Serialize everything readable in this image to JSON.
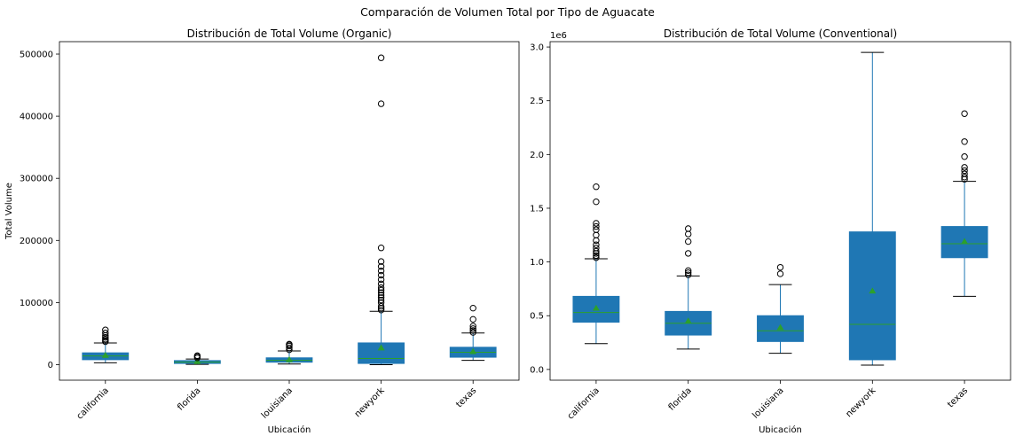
{
  "figure": {
    "suptitle": "Comparación de Volumen Total por Tipo de Aguacate"
  },
  "chart_data": [
    {
      "type": "box",
      "title": "Distribución de Total Volume (Organic)",
      "xlabel": "Ubicación",
      "ylabel": "Total Volume",
      "ylim": [
        -25000,
        520000
      ],
      "yticks": [
        0,
        100000,
        200000,
        300000,
        400000,
        500000
      ],
      "ytick_labels": [
        "0",
        "100000",
        "200000",
        "300000",
        "400000",
        "500000"
      ],
      "offset_label": "",
      "categories": [
        "california",
        "florida",
        "louisiana",
        "newyork",
        "texas"
      ],
      "box_color": "#1f77b4",
      "median_color": "#2ca02c",
      "mean_marker_color": "#2ca02c",
      "boxes": [
        {
          "q1": 8000,
          "median": 14000,
          "q3": 19000,
          "whislo": 3000,
          "whishi": 35000,
          "mean": 15000,
          "fliers": [
            37000,
            39000,
            41000,
            44000,
            47000,
            51000,
            56000
          ]
        },
        {
          "q1": 2000,
          "median": 4000,
          "q3": 6500,
          "whislo": 500,
          "whishi": 9000,
          "mean": 5000,
          "fliers": [
            11000,
            13000,
            14500
          ]
        },
        {
          "q1": 4000,
          "median": 7000,
          "q3": 11000,
          "whislo": 1000,
          "whishi": 22000,
          "mean": 8000,
          "fliers": [
            24000,
            27000,
            30000,
            32000,
            33000
          ]
        },
        {
          "q1": 2000,
          "median": 10000,
          "q3": 35000,
          "whislo": 0,
          "whishi": 86000,
          "mean": 27000,
          "fliers": [
            88000,
            91000,
            94000,
            100000,
            104000,
            108000,
            112000,
            116000,
            120000,
            124000,
            130000,
            137000,
            144000,
            151000,
            158000,
            166000,
            188000,
            420000,
            494000
          ]
        },
        {
          "q1": 12000,
          "median": 20000,
          "q3": 28000,
          "whislo": 7000,
          "whishi": 51000,
          "mean": 21000,
          "fliers": [
            52000,
            55000,
            58000,
            62000,
            73000,
            91000
          ]
        }
      ]
    },
    {
      "type": "box",
      "title": "Distribución de Total Volume (Conventional)",
      "xlabel": "Ubicación",
      "ylabel": "",
      "ylim": [
        -0.1,
        3.05
      ],
      "yticks": [
        0.0,
        0.5,
        1.0,
        1.5,
        2.0,
        2.5,
        3.0
      ],
      "ytick_labels": [
        "0.0",
        "0.5",
        "1.0",
        "1.5",
        "2.0",
        "2.5",
        "3.0"
      ],
      "offset_label": "1e6",
      "categories": [
        "california",
        "florida",
        "louisiana",
        "newyork",
        "texas"
      ],
      "box_color": "#1f77b4",
      "median_color": "#2ca02c",
      "mean_marker_color": "#2ca02c",
      "boxes": [
        {
          "q1": 0.44,
          "median": 0.53,
          "q3": 0.68,
          "whislo": 0.24,
          "whishi": 1.03,
          "mean": 0.57,
          "fliers": [
            1.04,
            1.06,
            1.08,
            1.1,
            1.13,
            1.16,
            1.2,
            1.25,
            1.3,
            1.33,
            1.36,
            1.56,
            1.7
          ]
        },
        {
          "q1": 0.32,
          "median": 0.43,
          "q3": 0.54,
          "whislo": 0.19,
          "whishi": 0.87,
          "mean": 0.45,
          "fliers": [
            0.88,
            0.9,
            0.92,
            1.08,
            1.19,
            1.26,
            1.31
          ]
        },
        {
          "q1": 0.26,
          "median": 0.36,
          "q3": 0.5,
          "whislo": 0.15,
          "whishi": 0.79,
          "mean": 0.39,
          "fliers": [
            0.89,
            0.95
          ]
        },
        {
          "q1": 0.09,
          "median": 0.42,
          "q3": 1.28,
          "whislo": 0.04,
          "whishi": 2.95,
          "mean": 0.73,
          "fliers": []
        },
        {
          "q1": 1.04,
          "median": 1.17,
          "q3": 1.33,
          "whislo": 0.68,
          "whishi": 1.75,
          "mean": 1.19,
          "fliers": [
            1.77,
            1.79,
            1.82,
            1.85,
            1.88,
            1.98,
            2.12,
            2.38
          ]
        }
      ]
    }
  ]
}
